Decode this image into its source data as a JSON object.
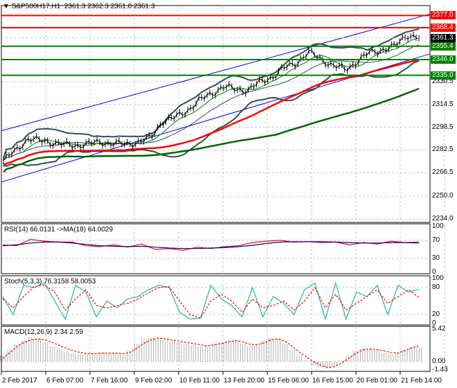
{
  "header": {
    "symbol": "S&P500H17,H1",
    "ohlc": "2361.3 2362.3 2361.0 2361.3"
  },
  "chart_data": [
    {
      "type": "line",
      "panel": "price",
      "ylim": [
        2231.6,
        2384
      ],
      "yticks": [
        "2330.5",
        "2314.5",
        "2298.5",
        "2282.5",
        "2266.5",
        "2250.0",
        "2234.0"
      ],
      "ytick_values": [
        2330.5,
        2314.5,
        2298.5,
        2282.5,
        2266.5,
        2250.0,
        2234.0
      ],
      "xticks": [
        "2 Feb 2017",
        "6 Feb 07:00",
        "7 Feb 16:00",
        "9 Feb 02:00",
        "10 Feb 11:00",
        "13 Feb 20:00",
        "15 Feb 06:00",
        "16 Feb 15:00",
        "20 Feb 01:00",
        "21 Feb 14:00"
      ],
      "close": [
        2275,
        2282,
        2290.5,
        2289,
        2288,
        2286,
        2285.6,
        2287,
        2288,
        2287,
        2286.6,
        2288,
        2290.5,
        2302.7,
        2305,
        2310,
        2317,
        2322,
        2327,
        2325,
        2324.6,
        2330,
        2334,
        2340,
        2344,
        2351,
        2346.5,
        2341.6,
        2339,
        2345,
        2351,
        2353,
        2355,
        2363.5,
        2361.3
      ],
      "levels": [
        {
          "value": 2377.0,
          "label": "2377.0",
          "color": "#ff0000"
        },
        {
          "value": 2368.4,
          "label": "2368.4",
          "color": "#ff0000"
        },
        {
          "value": 2355.4,
          "label": "2355.4",
          "color": "#008000"
        },
        {
          "value": 2346.0,
          "label": "2346.0",
          "color": "#008000"
        },
        {
          "value": 2335.0,
          "label": "2335.0",
          "color": "#008000"
        }
      ],
      "current": {
        "value": 2361.3,
        "label": "2361.3"
      },
      "trendlines": [
        {
          "from": 2296,
          "to": 2378
        },
        {
          "from": 2260,
          "to": 2350
        }
      ]
    },
    {
      "type": "line",
      "panel": "rsi",
      "title": "RSI(14) 66.0131  ->MA(18) 64.0029",
      "ylim": [
        0,
        100
      ],
      "yticks": [
        "100",
        "70",
        "30",
        "0"
      ],
      "rsi": [
        60,
        58,
        72,
        68,
        66,
        66,
        58,
        56,
        60,
        55,
        62,
        50,
        52,
        48,
        55,
        52,
        56,
        58,
        65,
        68,
        70,
        66,
        67,
        65,
        66,
        60,
        65,
        62,
        68,
        65,
        66
      ],
      "ma": [
        58,
        60,
        64,
        66,
        66,
        64,
        61,
        58,
        57,
        56,
        57,
        55,
        53,
        52,
        52,
        53,
        54,
        56,
        59,
        63,
        66,
        67,
        67,
        67,
        66,
        65,
        64,
        64,
        65,
        65,
        64
      ]
    },
    {
      "type": "line",
      "panel": "stoch",
      "title": "Stoch(5,3,3) 76.3158 58.0053",
      "ylim": [
        0,
        100
      ],
      "yticks": [
        "100",
        "80",
        "20",
        "0"
      ],
      "main": [
        60,
        20,
        85,
        80,
        90,
        50,
        10,
        85,
        70,
        15,
        50,
        35,
        55,
        60,
        75,
        85,
        80,
        25,
        10,
        12,
        85,
        55,
        40,
        15,
        80,
        15,
        60,
        45,
        20,
        75,
        90,
        10,
        90,
        10,
        70,
        60,
        85,
        20,
        85,
        70,
        76
      ],
      "signal": [
        55,
        35,
        60,
        82,
        85,
        70,
        30,
        55,
        75,
        40,
        35,
        40,
        45,
        55,
        68,
        80,
        82,
        50,
        20,
        12,
        50,
        65,
        50,
        25,
        55,
        35,
        40,
        50,
        30,
        50,
        80,
        35,
        65,
        30,
        45,
        60,
        75,
        45,
        60,
        75,
        58
      ]
    },
    {
      "type": "bar",
      "panel": "macd",
      "title": "MACD(12,26,9) 2.34 2.59",
      "ylim": [
        -1.43,
        5.42
      ],
      "yticks": [
        "5.42",
        "0.00",
        "-1.43"
      ],
      "hist": [
        1,
        2,
        3,
        3.5,
        4,
        3.8,
        3.2,
        2.5,
        2,
        1.6,
        1.4,
        1.2,
        1.2,
        1.3,
        1.5,
        1.4,
        1.3,
        1.2,
        1.8,
        3,
        3.8,
        4,
        3.9,
        3.6,
        3.4,
        3.2,
        3,
        2.8,
        2.5,
        2.6,
        3,
        3.2,
        3.5,
        3.6,
        3,
        2.6,
        2.8,
        3.4,
        4,
        3.8,
        3,
        2,
        1,
        0.2,
        -0.6,
        -1,
        -1.2,
        -0.8,
        0.2,
        1,
        1.8,
        2.2,
        2.1,
        1.9,
        1.5,
        1.2,
        1.5,
        2,
        2.4,
        2.3
      ],
      "signal": [
        0.5,
        1.5,
        2.5,
        3.2,
        3.6,
        3.8,
        3.6,
        3.2,
        2.7,
        2.2,
        1.8,
        1.5,
        1.3,
        1.3,
        1.4,
        1.4,
        1.4,
        1.3,
        1.5,
        2.2,
        3,
        3.6,
        3.9,
        3.8,
        3.6,
        3.4,
        3.2,
        3,
        2.8,
        2.6,
        2.8,
        3,
        3.3,
        3.5,
        3.3,
        2.9,
        2.8,
        3.1,
        3.6,
        3.8,
        3.4,
        2.6,
        1.6,
        0.8,
        0,
        -0.6,
        -1,
        -0.9,
        -0.3,
        0.5,
        1.3,
        1.9,
        2.1,
        2,
        1.8,
        1.5,
        1.4,
        1.8,
        2.3,
        2.59
      ]
    }
  ]
}
